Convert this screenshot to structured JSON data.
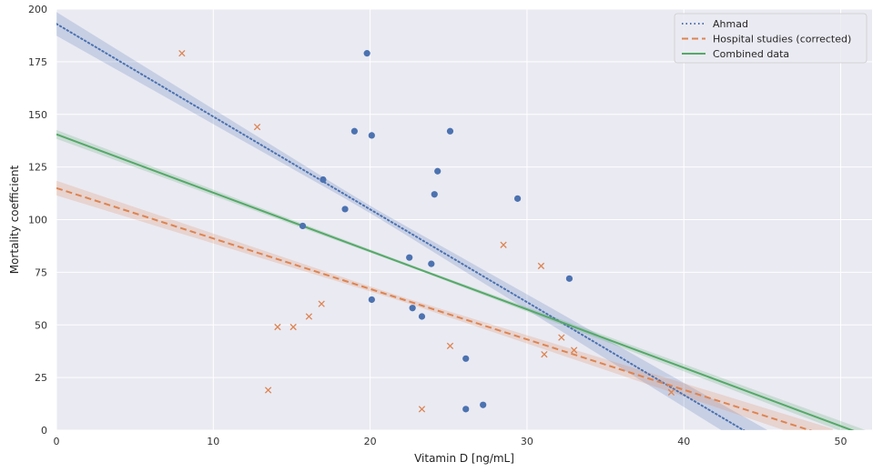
{
  "chart_data": {
    "type": "scatter",
    "title": "",
    "xlabel": "Vitamin D [ng/mL]",
    "ylabel": "Mortality coefficient",
    "xlim": [
      0,
      52
    ],
    "ylim": [
      0,
      200
    ],
    "xticks": [
      0,
      10,
      20,
      30,
      40,
      50
    ],
    "yticks": [
      0,
      25,
      50,
      75,
      100,
      125,
      150,
      175,
      200
    ],
    "grid": true,
    "legend_position": "top-right",
    "colors": {
      "background": "#eaeaf2",
      "grid": "#ffffff",
      "blue": "#4c72b0",
      "orange": "#dd8452",
      "green": "#55a868"
    },
    "series": [
      {
        "name": "Ahmad",
        "kind": "regression",
        "style": "dotted",
        "color": "#4c72b0",
        "x": [
          0,
          43.8
        ],
        "y": [
          193,
          0
        ],
        "ci": 4,
        "points": {
          "marker": "circle",
          "x": [
            15.7,
            17,
            18.4,
            19,
            19.8,
            20.1,
            20.1,
            22.5,
            22.7,
            23.3,
            23.9,
            24.1,
            24.3,
            25.1,
            26.1,
            26.1,
            27.2,
            29.4,
            32.7
          ],
          "y": [
            97,
            119,
            105,
            142,
            179,
            140,
            62,
            82,
            58,
            54,
            79,
            112,
            123,
            142,
            34,
            10,
            12,
            110,
            72
          ]
        }
      },
      {
        "name": "Hospital studies (corrected)",
        "kind": "regression",
        "style": "dashed",
        "color": "#dd8452",
        "x": [
          0,
          48
        ],
        "y": [
          115,
          0
        ],
        "ci": 2.5,
        "points": {
          "marker": "x",
          "x": [
            8,
            12.8,
            13.5,
            14.1,
            15.1,
            16.1,
            16.9,
            23.3,
            25.1,
            28.5,
            30.9,
            31.1,
            32.2,
            33,
            39.2
          ],
          "y": [
            179,
            144,
            19,
            49,
            49,
            54,
            60,
            10,
            40,
            88,
            78,
            36,
            44,
            38,
            18
          ]
        }
      },
      {
        "name": "Combined data",
        "kind": "regression",
        "style": "solid",
        "color": "#55a868",
        "x": [
          0,
          50.7
        ],
        "y": [
          140.5,
          0
        ],
        "ci": 1.5
      }
    ]
  }
}
